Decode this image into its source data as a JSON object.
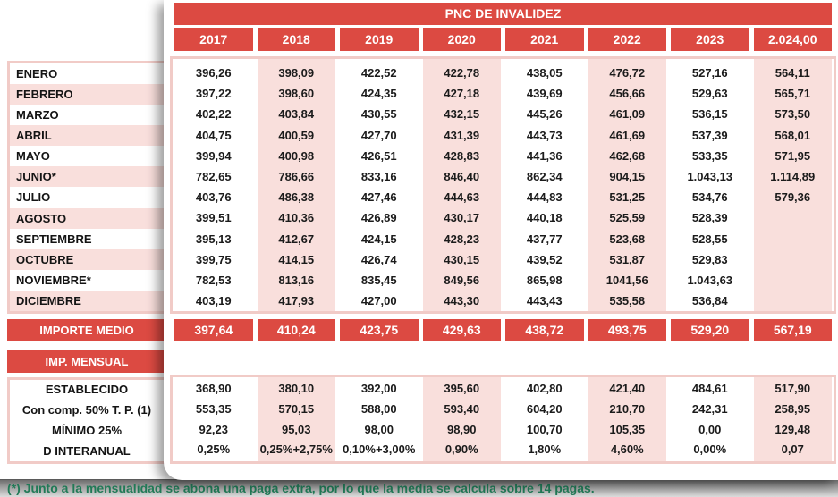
{
  "sheet": {
    "title": "PNC DE INVALIDEZ",
    "years": [
      "2017",
      "2018",
      "2019",
      "2020",
      "2021",
      "2022",
      "2023",
      "2.024,00"
    ],
    "months": [
      "ENERO",
      "FEBRERO",
      "MARZO",
      "ABRIL",
      "MAYO",
      "JUNIO*",
      "JULIO",
      "AGOSTO",
      "SEPTIEMBRE",
      "OCTUBRE",
      "NOVIEMBRE*",
      "DICIEMBRE"
    ],
    "columns": [
      {
        "year": "2017",
        "values": [
          "396,26",
          "397,22",
          "402,22",
          "404,75",
          "399,94",
          "782,65",
          "403,76",
          "399,51",
          "395,13",
          "399,75",
          "782,53",
          "403,19"
        ]
      },
      {
        "year": "2018",
        "values": [
          "398,09",
          "398,60",
          "403,84",
          "400,59",
          "400,98",
          "786,66",
          "486,38",
          "410,36",
          "412,67",
          "414,15",
          "813,16",
          "417,93"
        ]
      },
      {
        "year": "2019",
        "values": [
          "422,52",
          "424,35",
          "430,55",
          "427,70",
          "426,51",
          "833,16",
          "427,46",
          "426,89",
          "424,15",
          "426,74",
          "835,45",
          "427,00"
        ]
      },
      {
        "year": "2020",
        "values": [
          "422,78",
          "427,18",
          "432,15",
          "431,39",
          "428,83",
          "846,40",
          "444,63",
          "430,17",
          "428,23",
          "430,15",
          "849,56",
          "443,30"
        ]
      },
      {
        "year": "2021",
        "values": [
          "438,05",
          "439,69",
          "445,26",
          "443,73",
          "441,36",
          "862,34",
          "444,83",
          "440,18",
          "437,77",
          "439,52",
          "865,98",
          "443,43"
        ]
      },
      {
        "year": "2022",
        "values": [
          "476,72",
          "456,66",
          "461,09",
          "461,69",
          "462,68",
          "904,15",
          "531,25",
          "525,59",
          "523,68",
          "531,87",
          "1041,56",
          "535,58"
        ]
      },
      {
        "year": "2023",
        "values": [
          "527,16",
          "529,63",
          "536,15",
          "537,39",
          "533,35",
          "1.043,13",
          "534,76",
          "528,39",
          "528,55",
          "529,83",
          "1.043,63",
          "536,84"
        ]
      },
      {
        "year": "2.024,00",
        "values": [
          "564,11",
          "565,71",
          "573,50",
          "568,01",
          "571,95",
          "1.114,89",
          "579,36",
          "",
          "",
          "",
          "",
          ""
        ]
      }
    ],
    "importe_medio": {
      "label": "IMPORTE MEDIO",
      "values": [
        "397,64",
        "410,24",
        "423,75",
        "429,63",
        "438,72",
        "493,75",
        "529,20",
        "567,19"
      ]
    },
    "imp_mensual": {
      "label": "IMP. MENSUAL"
    },
    "bottom_rows": [
      {
        "label": "ESTABLECIDO",
        "values": [
          "368,90",
          "380,10",
          "392,00",
          "395,60",
          "402,80",
          "421,40",
          "484,61",
          "517,90"
        ]
      },
      {
        "label": "Con comp. 50% T. P. (1)",
        "values": [
          "553,35",
          "570,15",
          "588,00",
          "593,40",
          "604,20",
          "210,70",
          "242,31",
          "258,95"
        ]
      },
      {
        "label": "MÍNIMO 25%",
        "values": [
          "92,23",
          "95,03",
          "98,00",
          "98,90",
          "100,70",
          "105,35",
          "0,00",
          "129,48"
        ]
      },
      {
        "label": "D INTERANUAL",
        "values": [
          "0,25%",
          "0,25%+2,75%",
          "0,10%+3,00%",
          "0,90%",
          "1,80%",
          "4,60%",
          "0,00%",
          "0,07"
        ]
      }
    ]
  },
  "footnote": "(*) Junto a la mensualidad se abona una paga extra, por lo que la media se calcula sobre 14 pagas.",
  "colors": {
    "red": "#DC4A42",
    "pink_fill": "#F9DFDC",
    "pink_border": "#F1CBC7",
    "footnote_green": "#217A57"
  }
}
